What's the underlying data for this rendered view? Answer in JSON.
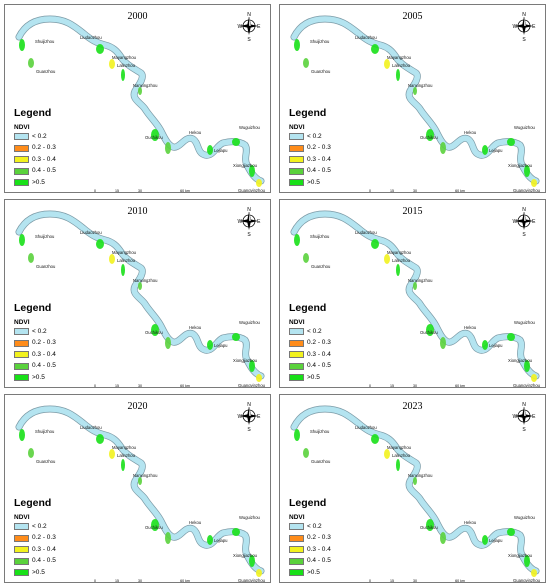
{
  "panels": [
    {
      "year": "2000"
    },
    {
      "year": "2005"
    },
    {
      "year": "2010"
    },
    {
      "year": "2015"
    },
    {
      "year": "2020"
    },
    {
      "year": "2023"
    }
  ],
  "legend": {
    "title": "Legend",
    "subtitle": "NDVI",
    "items": [
      {
        "label": "< 0.2",
        "color": "#b4e4f0"
      },
      {
        "label": "0.2 - 0.3",
        "color": "#ff8c1a"
      },
      {
        "label": "0.3 - 0.4",
        "color": "#f2f21e"
      },
      {
        "label": "0.4 - 0.5",
        "color": "#5ad23c"
      },
      {
        "label": ">0.5",
        "color": "#18e018"
      }
    ]
  },
  "places": {
    "shuijizhou": "Shuijizhou",
    "liudaozhou": "Liudaozhou",
    "guanzhou": "Guanzhou",
    "mayangzhou": "Mayangzhou",
    "lalinzhou": "Lalinzhou",
    "nanxingzhou": "Nanxingzhou",
    "ouchikou": "Ouchikou",
    "hekou": "Hekou",
    "wuguizhou": "Wuguizhou",
    "lejiapu": "Lejiapu",
    "xiongjiazhou": "Xiongjiazhou",
    "guanyinzhou": "Guangyinzhou"
  },
  "compass": {
    "n": "N",
    "s": "S",
    "e": "E",
    "w": "W"
  },
  "scale": {
    "ticks": [
      "0",
      "15",
      "30",
      "60 km"
    ]
  }
}
